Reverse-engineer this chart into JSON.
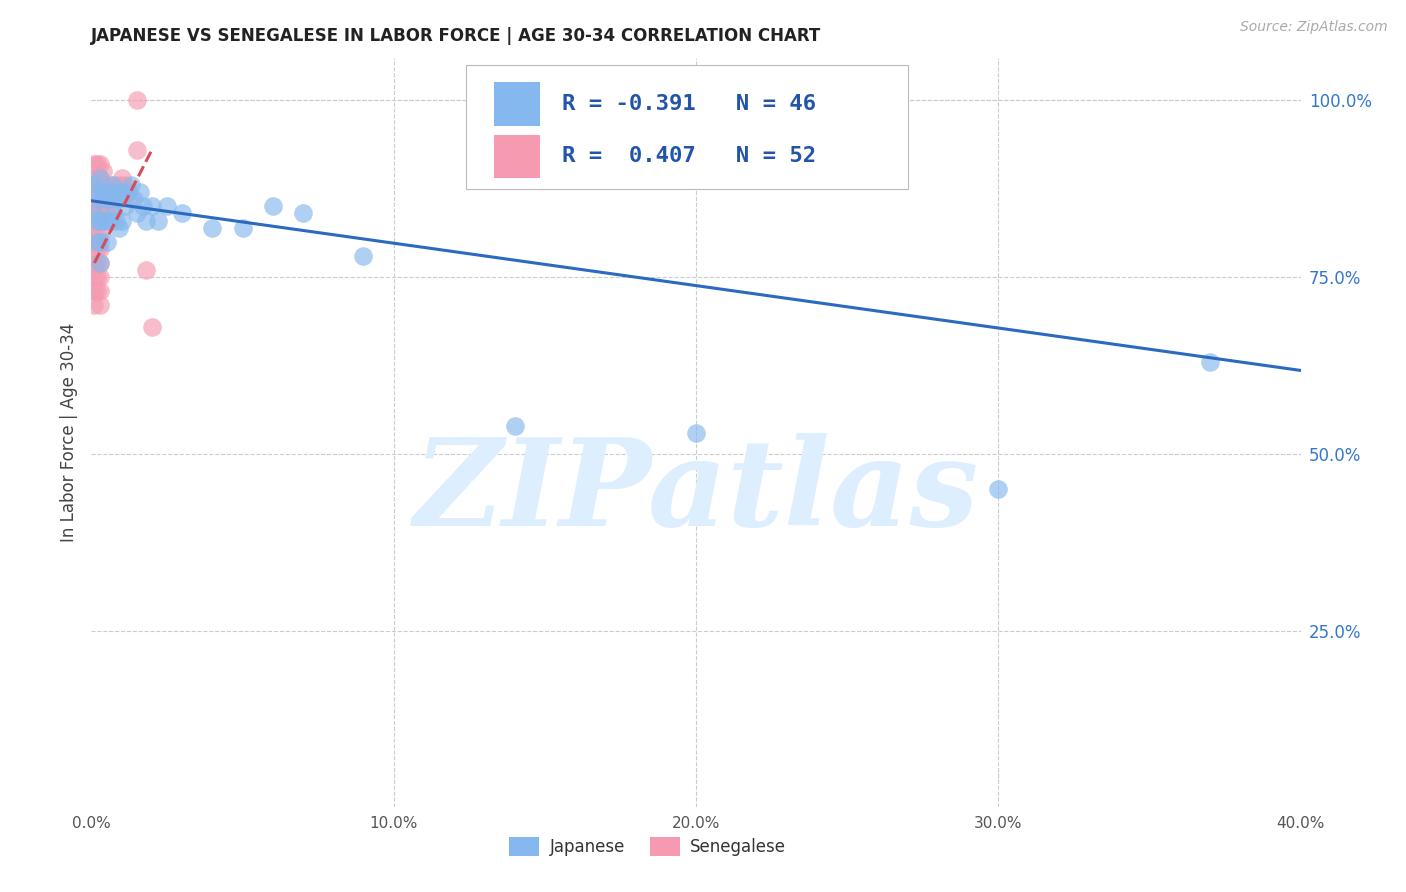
{
  "title": "JAPANESE VS SENEGALESE IN LABOR FORCE | AGE 30-34 CORRELATION CHART",
  "source": "Source: ZipAtlas.com",
  "ylabel": "In Labor Force | Age 30-34",
  "xlim": [
    0.0,
    0.4
  ],
  "ylim": [
    0.0,
    1.06
  ],
  "xtick_vals": [
    0.0,
    0.1,
    0.2,
    0.3,
    0.4
  ],
  "ytick_vals_right": [
    1.0,
    0.75,
    0.5,
    0.25
  ],
  "ytick_labels_right": [
    "100.0%",
    "75.0%",
    "50.0%",
    "25.0%"
  ],
  "legend_label1": "Japanese",
  "legend_label2": "Senegalese",
  "r_japanese": "-0.391",
  "n_japanese": "46",
  "r_senegalese": "0.407",
  "n_senegalese": "52",
  "color_japanese": "#85b8ee",
  "color_senegalese": "#f59ab0",
  "trendline_japanese_color": "#2b6abf",
  "trendline_senegalese_color": "#d94a5a",
  "watermark_color": "#ddeeff",
  "background_color": "#ffffff",
  "grid_color": "#cccccc",
  "japanese_x": [
    0.001,
    0.001,
    0.002,
    0.002,
    0.002,
    0.003,
    0.003,
    0.003,
    0.003,
    0.003,
    0.004,
    0.004,
    0.005,
    0.005,
    0.005,
    0.006,
    0.006,
    0.007,
    0.007,
    0.008,
    0.008,
    0.009,
    0.009,
    0.01,
    0.01,
    0.011,
    0.012,
    0.013,
    0.014,
    0.015,
    0.016,
    0.017,
    0.018,
    0.02,
    0.022,
    0.025,
    0.03,
    0.04,
    0.05,
    0.06,
    0.07,
    0.09,
    0.14,
    0.2,
    0.3,
    0.37
  ],
  "japanese_y": [
    0.88,
    0.84,
    0.87,
    0.83,
    0.8,
    0.89,
    0.86,
    0.83,
    0.8,
    0.77,
    0.87,
    0.83,
    0.86,
    0.83,
    0.8,
    0.87,
    0.83,
    0.88,
    0.84,
    0.87,
    0.83,
    0.86,
    0.82,
    0.87,
    0.83,
    0.85,
    0.87,
    0.88,
    0.86,
    0.84,
    0.87,
    0.85,
    0.83,
    0.85,
    0.83,
    0.85,
    0.84,
    0.82,
    0.82,
    0.85,
    0.84,
    0.78,
    0.54,
    0.53,
    0.45,
    0.63
  ],
  "senegalese_x": [
    0.001,
    0.001,
    0.001,
    0.001,
    0.001,
    0.001,
    0.001,
    0.001,
    0.001,
    0.001,
    0.001,
    0.002,
    0.002,
    0.002,
    0.002,
    0.002,
    0.002,
    0.002,
    0.002,
    0.002,
    0.002,
    0.003,
    0.003,
    0.003,
    0.003,
    0.003,
    0.003,
    0.003,
    0.003,
    0.003,
    0.003,
    0.003,
    0.004,
    0.004,
    0.004,
    0.005,
    0.005,
    0.005,
    0.006,
    0.006,
    0.007,
    0.007,
    0.008,
    0.009,
    0.01,
    0.011,
    0.012,
    0.013,
    0.015,
    0.015,
    0.018,
    0.02
  ],
  "senegalese_y": [
    0.91,
    0.89,
    0.87,
    0.85,
    0.83,
    0.81,
    0.79,
    0.77,
    0.75,
    0.73,
    0.71,
    0.91,
    0.89,
    0.87,
    0.85,
    0.83,
    0.81,
    0.79,
    0.77,
    0.75,
    0.73,
    0.91,
    0.89,
    0.87,
    0.85,
    0.83,
    0.81,
    0.79,
    0.77,
    0.75,
    0.73,
    0.71,
    0.9,
    0.88,
    0.86,
    0.88,
    0.86,
    0.84,
    0.87,
    0.85,
    0.88,
    0.86,
    0.87,
    0.88,
    0.89,
    0.88,
    0.87,
    0.86,
    0.93,
    1.0,
    0.76,
    0.68
  ],
  "j_trend_x": [
    0.0,
    0.4
  ],
  "j_trend_y": [
    0.858,
    0.618
  ],
  "s_trend_x": [
    0.001,
    0.02
  ],
  "s_trend_y": [
    0.77,
    0.93
  ]
}
